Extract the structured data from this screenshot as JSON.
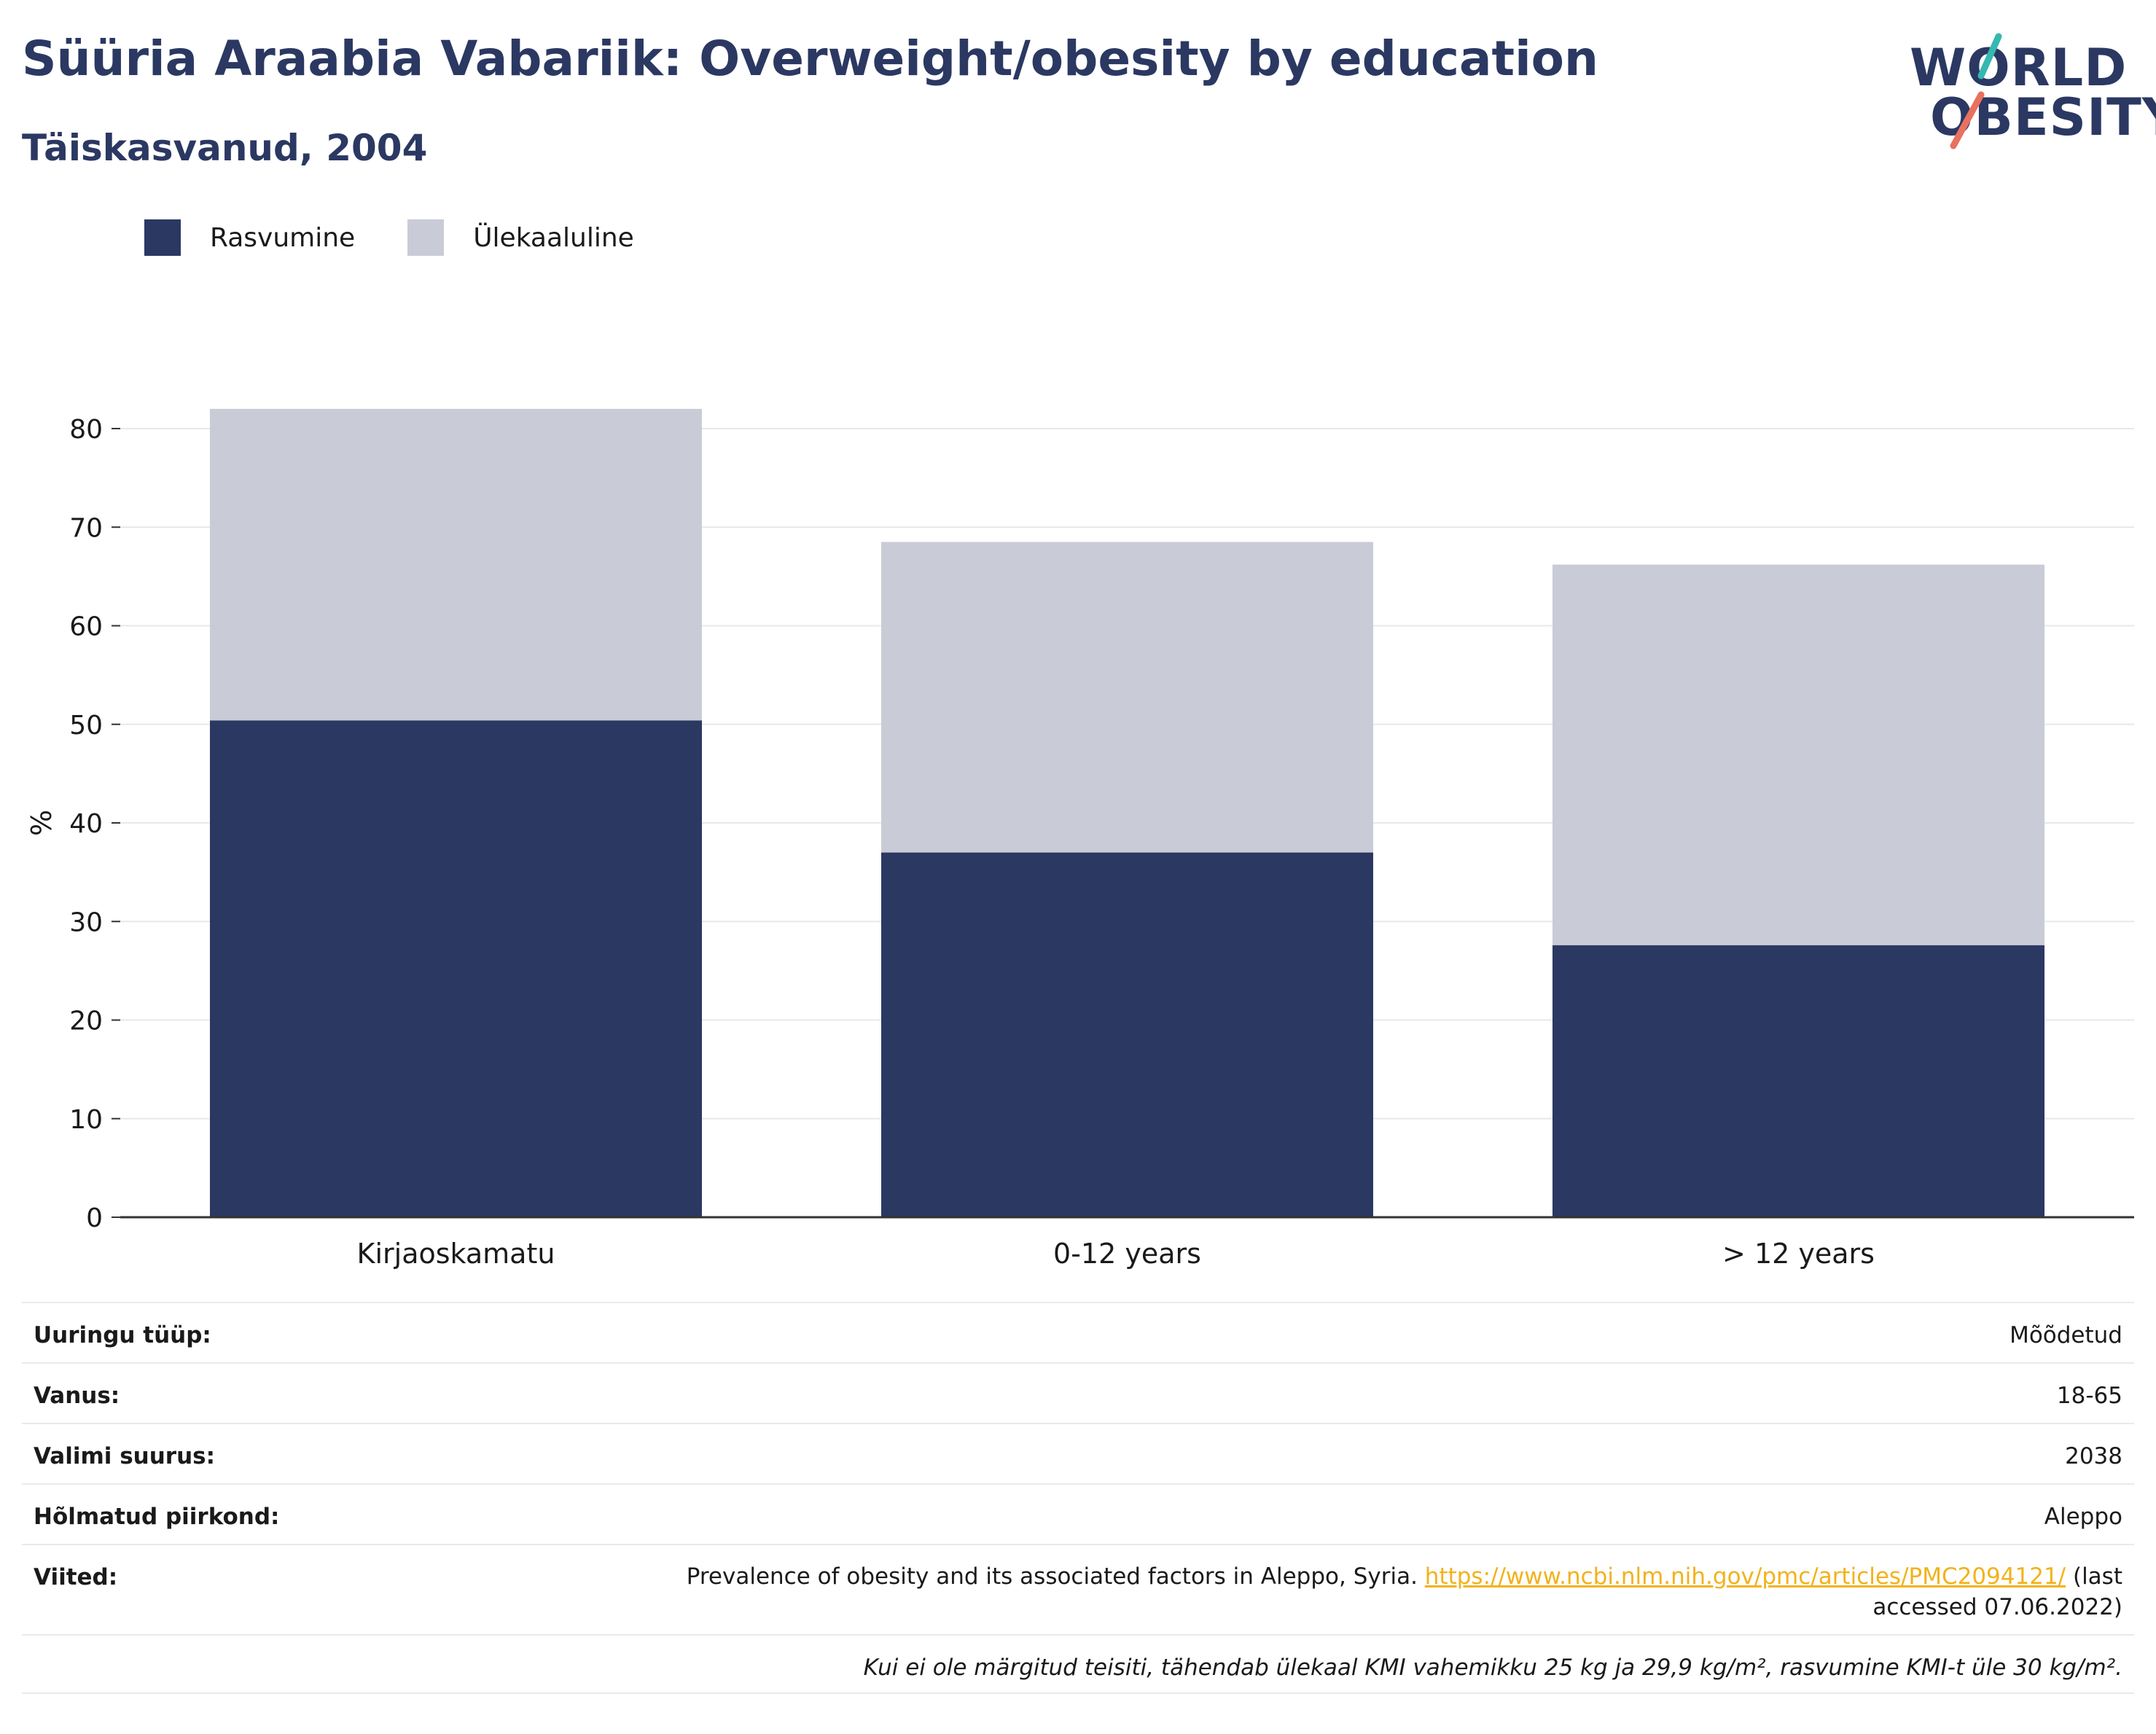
{
  "header": {
    "title": "Süüria Araabia Vabariik: Overweight/obesity by education",
    "subtitle": "Täiskasvanud, 2004"
  },
  "logo": {
    "line1": "WORLD",
    "line2": "OBESITY",
    "accent_teal": "#35b8b0",
    "accent_coral": "#e8715f"
  },
  "legend": [
    {
      "label": "Rasvumine",
      "color": "#2b3862"
    },
    {
      "label": "Ülekaaluline",
      "color": "#c9ccd7"
    }
  ],
  "chart_data": {
    "type": "bar",
    "stacked": true,
    "categories": [
      "Kirjaoskamatu",
      "0-12 years",
      "> 12 years"
    ],
    "series": [
      {
        "name": "Rasvumine",
        "color": "#2b3862",
        "values": [
          50.4,
          37.0,
          27.6
        ]
      },
      {
        "name": "Ülekaaluline",
        "color": "#c9ccd7",
        "values": [
          31.6,
          31.5,
          38.6
        ]
      }
    ],
    "ylabel": "%",
    "ylim": [
      0,
      82
    ],
    "yticks": [
      0,
      10,
      20,
      30,
      40,
      50,
      60,
      70,
      80
    ],
    "grid": true,
    "legend_position": "top-left"
  },
  "meta": {
    "survey_type": {
      "label": "Uuringu tüüp:",
      "value": "Mõõdetud"
    },
    "age": {
      "label": "Vanus:",
      "value": "18-65"
    },
    "sample_size": {
      "label": "Valimi suurus:",
      "value": "2038"
    },
    "region": {
      "label": "Hõlmatud piirkond:",
      "value": "Aleppo"
    },
    "references": {
      "label": "Viited:",
      "text": "Prevalence of obesity and its associated factors in Aleppo, Syria. ",
      "link": "https://www.ncbi.nlm.nih.gov/pmc/articles/PMC2094121/",
      "suffix": " (last accessed 07.06.2022)"
    },
    "note": "Kui ei ole märgitud teisiti, tähendab ülekaal KMI vahemikku 25 kg ja 29,9 kg/m², rasvumine KMI-t üle 30 kg/m²."
  }
}
